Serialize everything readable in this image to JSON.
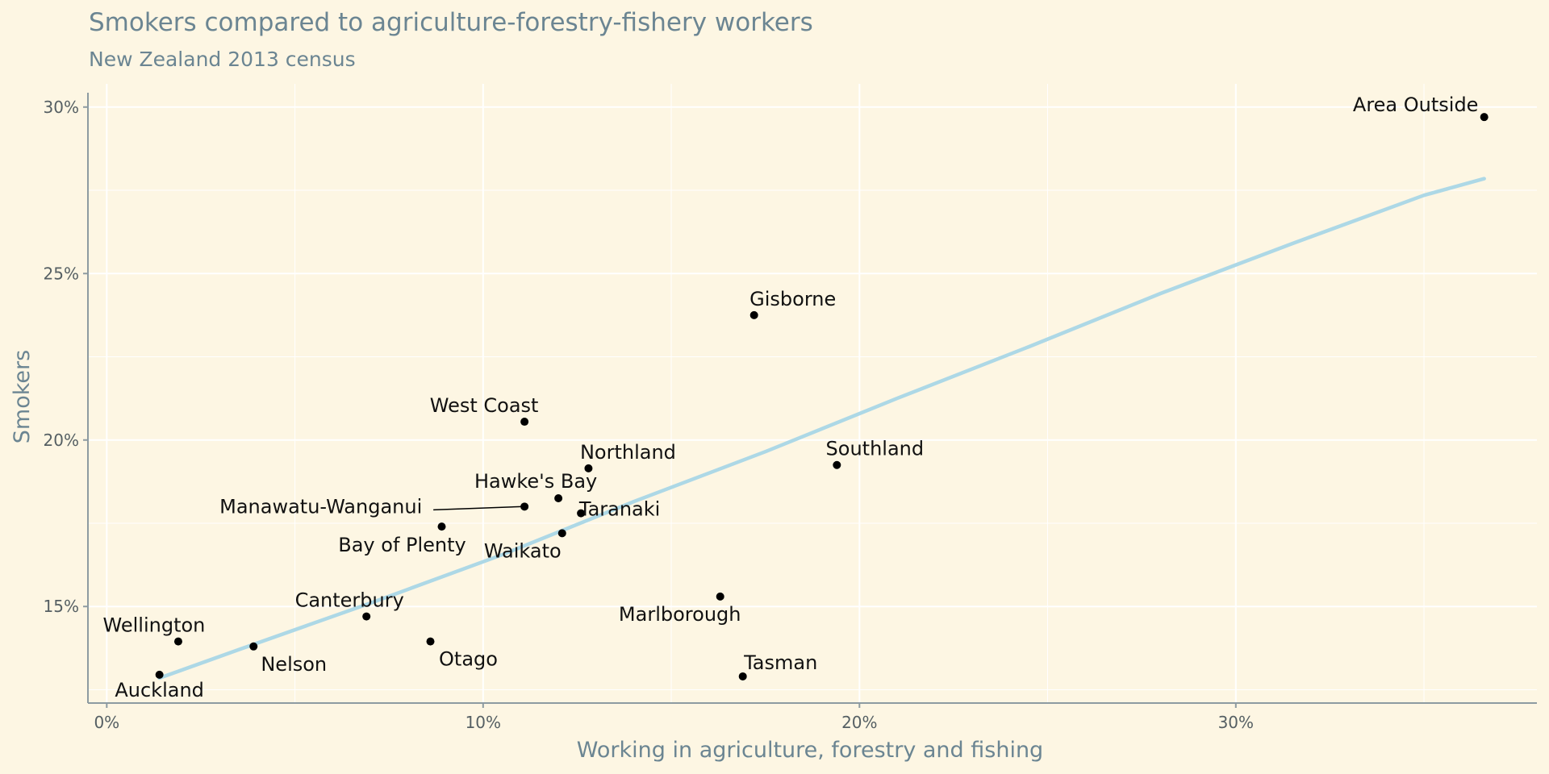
{
  "chart_data": {
    "type": "scatter",
    "title": "Smokers compared to agriculture-forestry-fishery workers",
    "subtitle": "New Zealand 2013 census",
    "xlabel": "Working in agriculture, forestry and fishing",
    "ylabel": "Smokers",
    "xlim": [
      -0.5,
      38
    ],
    "ylim": [
      12.1,
      30.6
    ],
    "x_ticks": [
      {
        "value": 0,
        "label": "0%"
      },
      {
        "value": 10,
        "label": "10%"
      },
      {
        "value": 20,
        "label": "20%"
      },
      {
        "value": 30,
        "label": "30%"
      }
    ],
    "y_ticks": [
      {
        "value": 15,
        "label": "15%"
      },
      {
        "value": 20,
        "label": "20%"
      },
      {
        "value": 25,
        "label": "25%"
      },
      {
        "value": 30,
        "label": "30%"
      }
    ],
    "grid": true,
    "points": [
      {
        "name": "Auckland",
        "x": 1.4,
        "y": 12.95
      },
      {
        "name": "Wellington",
        "x": 1.9,
        "y": 13.95
      },
      {
        "name": "Nelson",
        "x": 3.9,
        "y": 13.8
      },
      {
        "name": "Canterbury",
        "x": 6.9,
        "y": 14.7
      },
      {
        "name": "Otago",
        "x": 8.6,
        "y": 13.95
      },
      {
        "name": "Bay of Plenty",
        "x": 8.9,
        "y": 17.4
      },
      {
        "name": "Manawatu-Wanganui",
        "x": 11.1,
        "y": 18.0
      },
      {
        "name": "West Coast",
        "x": 11.1,
        "y": 20.55
      },
      {
        "name": "Hawke's Bay",
        "x": 12.0,
        "y": 18.25
      },
      {
        "name": "Waikato",
        "x": 12.1,
        "y": 17.2
      },
      {
        "name": "Taranaki",
        "x": 12.6,
        "y": 17.8
      },
      {
        "name": "Northland",
        "x": 12.8,
        "y": 19.15
      },
      {
        "name": "Marlborough",
        "x": 16.3,
        "y": 15.3
      },
      {
        "name": "Tasman",
        "x": 16.9,
        "y": 12.9
      },
      {
        "name": "Gisborne",
        "x": 17.2,
        "y": 23.75
      },
      {
        "name": "Southland",
        "x": 19.4,
        "y": 19.25
      },
      {
        "name": "Area Outside",
        "x": 36.6,
        "y": 29.7
      }
    ],
    "trend_line": [
      {
        "x": 1.4,
        "y": 12.85
      },
      {
        "x": 3.5,
        "y": 13.7
      },
      {
        "x": 7,
        "y": 15.1
      },
      {
        "x": 10.5,
        "y": 16.55
      },
      {
        "x": 14,
        "y": 18.15
      },
      {
        "x": 17.5,
        "y": 19.65
      },
      {
        "x": 21,
        "y": 21.25
      },
      {
        "x": 24.5,
        "y": 22.8
      },
      {
        "x": 28,
        "y": 24.4
      },
      {
        "x": 31.5,
        "y": 25.9
      },
      {
        "x": 35,
        "y": 27.35
      },
      {
        "x": 36.6,
        "y": 27.85
      }
    ],
    "colors": {
      "background": "#fdf6e3",
      "grid": "#ffffff",
      "axis": "#8d9ba1",
      "point": "#000000",
      "trend": "#add8e6",
      "title": "#6b8592"
    }
  }
}
